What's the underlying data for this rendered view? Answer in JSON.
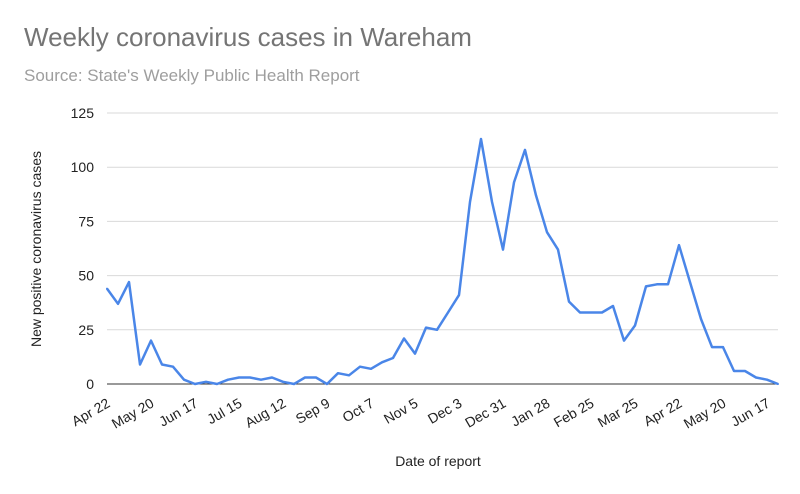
{
  "chart_data": {
    "type": "line",
    "title": "Weekly coronavirus cases in Wareham",
    "subtitle": "Source: State's Weekly Public Health Report",
    "xlabel": "Date of report",
    "ylabel": "New positive coronavirus cases",
    "ylim": [
      0,
      125
    ],
    "yticks": [
      0,
      25,
      50,
      75,
      100,
      125
    ],
    "grid": true,
    "legend": "none",
    "line_color": "#4a86e8",
    "x_tick_labels": [
      "Apr 22",
      "May 20",
      "Jun 17",
      "Jul 15",
      "Aug 12",
      "Sep 9",
      "Oct 7",
      "Nov 5",
      "Dec 3",
      "Dec 31",
      "Jan 28",
      "Feb 25",
      "Mar 25",
      "Apr 22",
      "May 20",
      "Jun 17"
    ],
    "x_tick_indices": [
      0,
      4,
      8,
      12,
      16,
      20,
      24,
      28,
      32,
      36,
      40,
      44,
      48,
      52,
      56,
      60
    ],
    "series": [
      {
        "values": [
          44,
          37,
          47,
          9,
          20,
          9,
          8,
          2,
          0,
          1,
          0,
          2,
          3,
          3,
          2,
          3,
          1,
          0,
          3,
          3,
          0,
          5,
          4,
          8,
          7,
          10,
          12,
          21,
          14,
          26,
          25,
          33,
          41,
          84,
          113,
          84,
          62,
          93,
          108,
          87,
          70,
          62,
          38,
          33,
          33,
          33,
          36,
          20,
          27,
          45,
          46,
          46,
          64,
          47,
          30,
          17,
          17,
          6,
          6,
          3,
          2,
          0
        ]
      }
    ]
  }
}
